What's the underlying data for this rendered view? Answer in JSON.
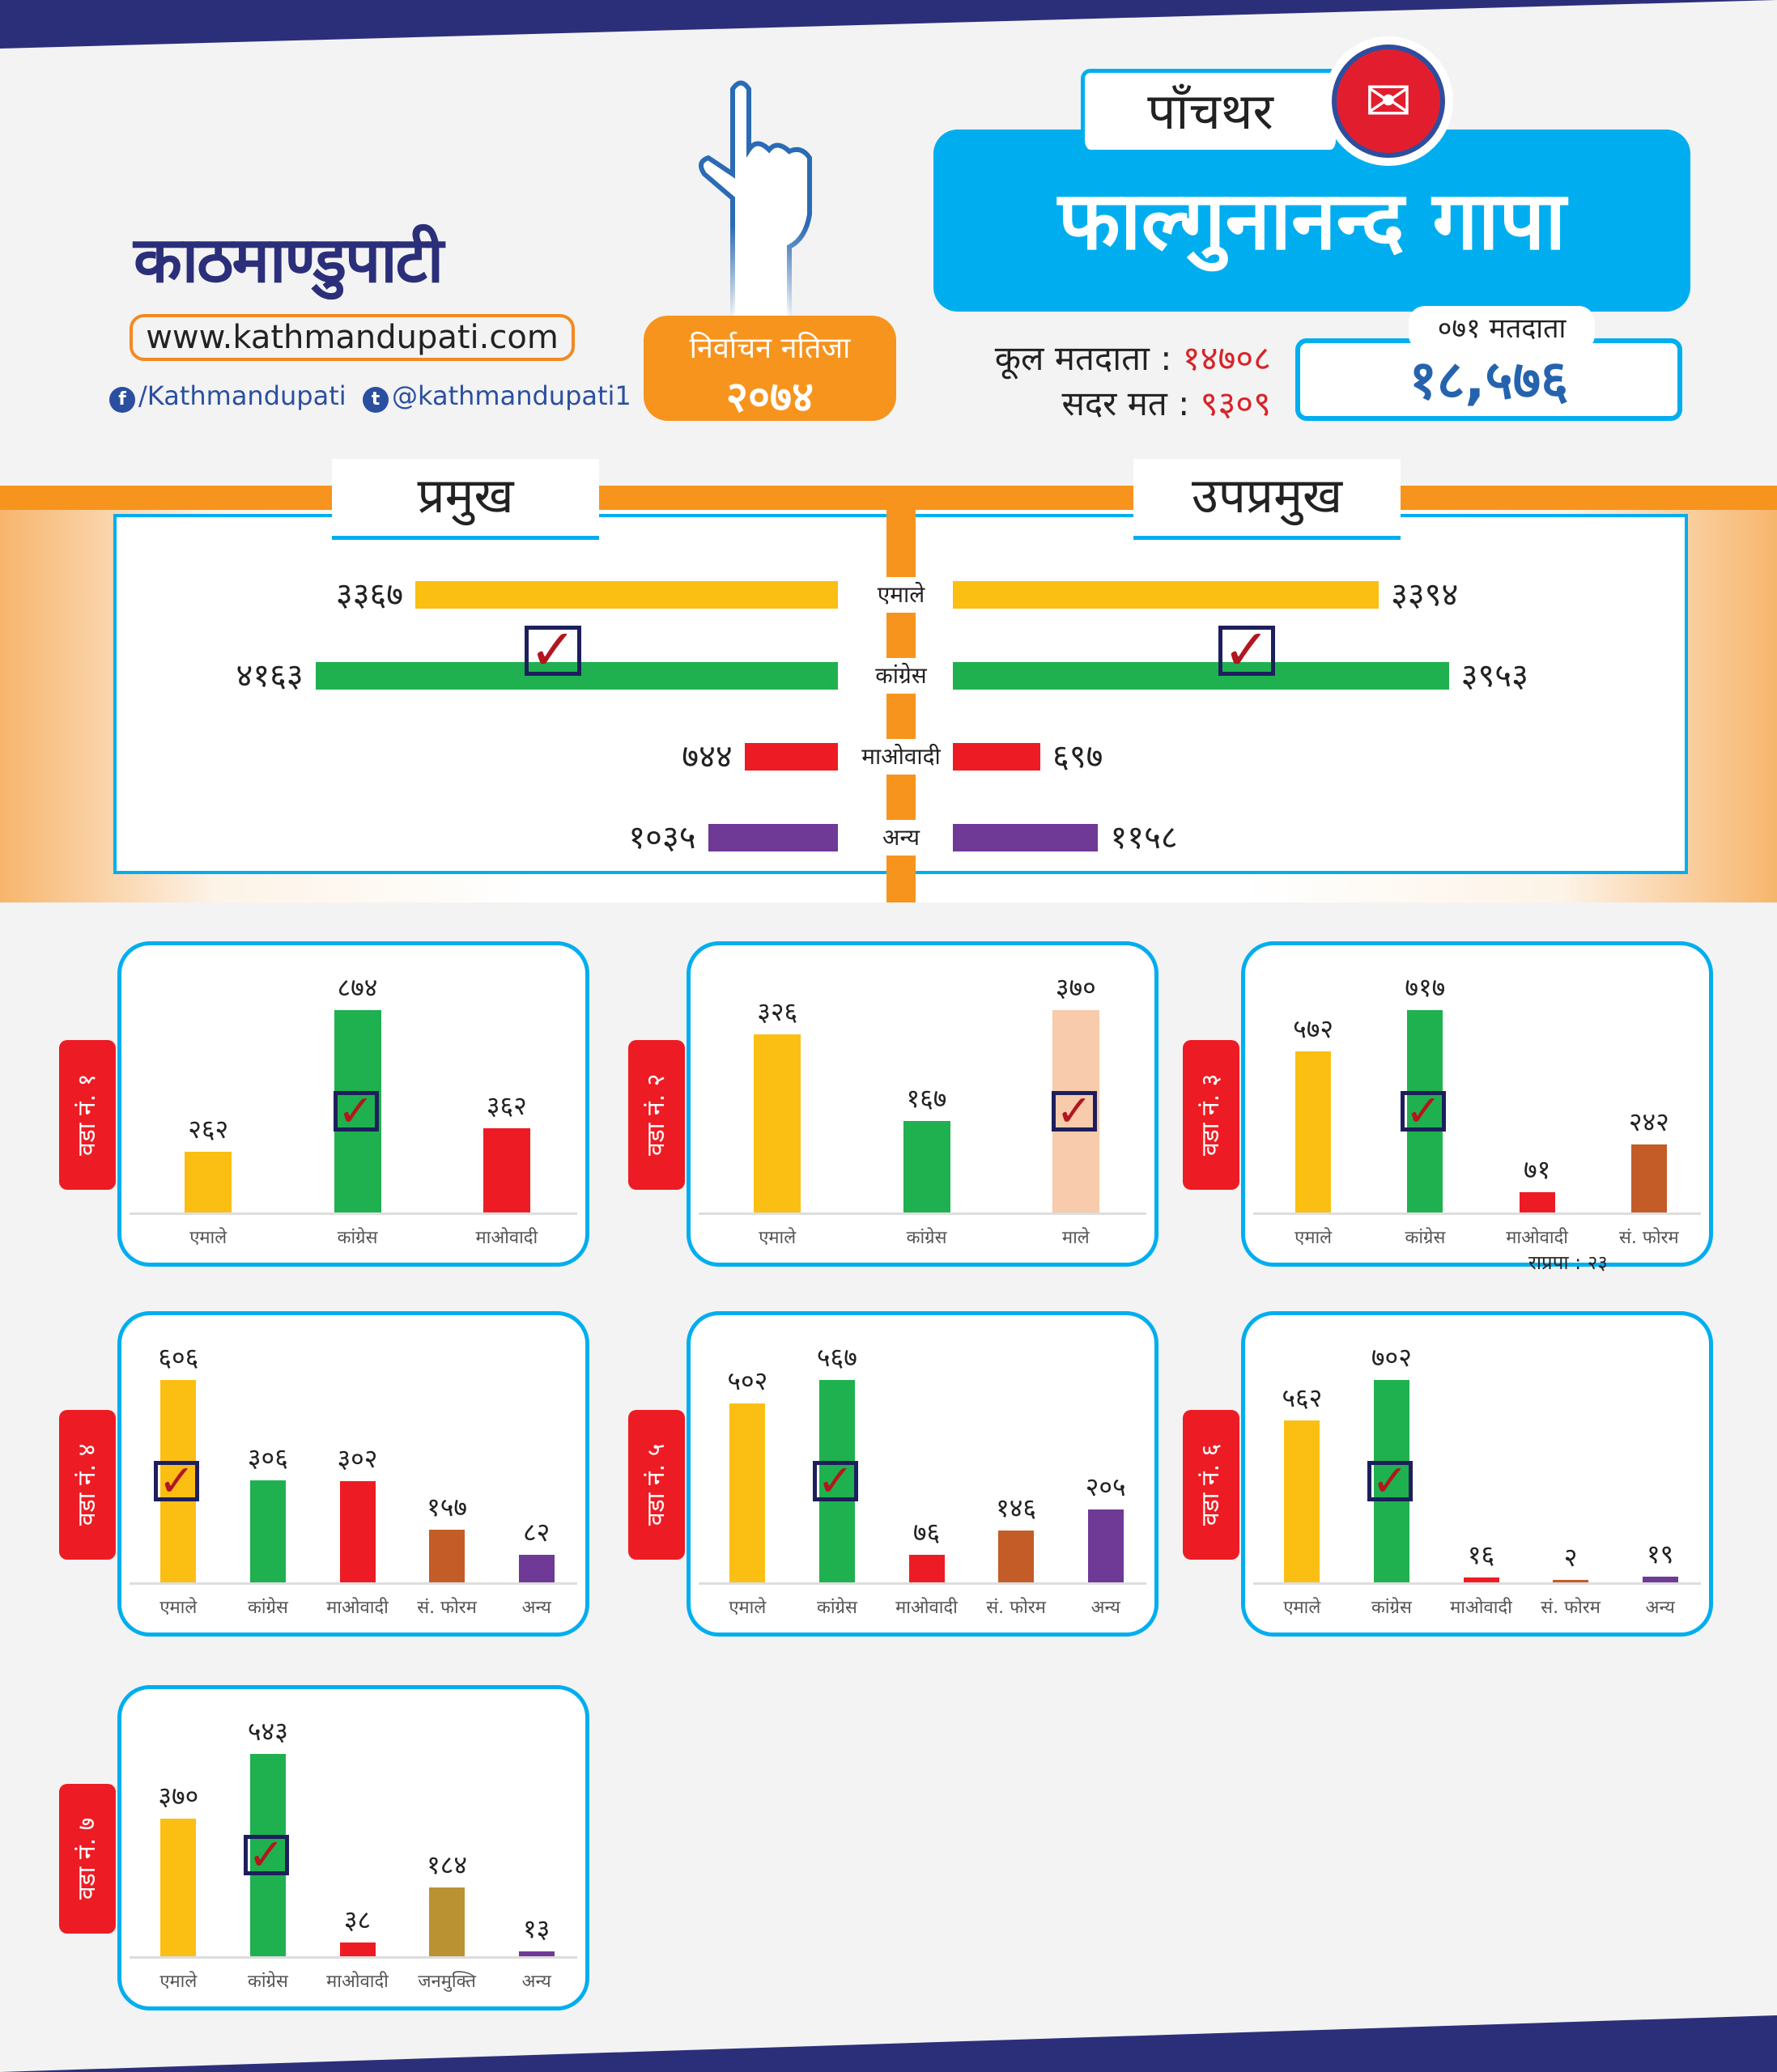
{
  "header": {
    "logo_text": "काठमाण्डुपाटी",
    "url": "www.kathmandupati.com",
    "facebook": "/Kathmandupati",
    "twitter": "@kathmandupati1",
    "badge_line1": "निर्वाचन नतिजा",
    "badge_line2": "२०७४"
  },
  "district": "पाँचथर",
  "municipality": "फाल्गुनानन्द गापा",
  "stats": {
    "total_voters_label": "कूल मतदाता :",
    "total_voters": "१४७०८",
    "valid_votes_label": "सदर मत :",
    "valid_votes": "९३०९",
    "prev_label": "०७१ मतदाता",
    "prev_value": "१८,५७६"
  },
  "colors": {
    "uml": "#fbbf13",
    "congress": "#1fb14f",
    "maoist": "#ed1c24",
    "other": "#6f3996",
    "forum": "#c45c28",
    "male": "#f7cbab",
    "janamukti": "#bb9232"
  },
  "summary": {
    "chief_label": "प्रमुख",
    "deputy_label": "उपप्रमुख",
    "parties": [
      {
        "name": "एमाले",
        "chief": 3367,
        "chief_text": "३३६७",
        "deputy": 3394,
        "deputy_text": "३३९४",
        "color": "#fbbf13"
      },
      {
        "name": "कांग्रेस",
        "chief": 4163,
        "chief_text": "४१६३",
        "deputy": 3953,
        "deputy_text": "३९५३",
        "color": "#1fb14f",
        "winner": true
      },
      {
        "name": "माओवादी",
        "chief": 744,
        "chief_text": "७४४",
        "deputy": 697,
        "deputy_text": "६९७",
        "color": "#ed1c24"
      },
      {
        "name": "अन्य",
        "chief": 1035,
        "chief_text": "१०३५",
        "deputy": 1158,
        "deputy_text": "११५८",
        "color": "#6f3996"
      }
    ]
  },
  "chart_data": [
    {
      "type": "bar",
      "title": "वडा नं. १",
      "categories": [
        "एमाले",
        "कांग्रेस",
        "माओवादी"
      ],
      "values": [
        262,
        874,
        362
      ],
      "labels": [
        "२६२",
        "८७४",
        "३६२"
      ],
      "colors": [
        "#fbbf13",
        "#1fb14f",
        "#ed1c24"
      ],
      "winner": 1
    },
    {
      "type": "bar",
      "title": "वडा नं. २",
      "categories": [
        "एमाले",
        "कांग्रेस",
        "माले"
      ],
      "values": [
        326,
        167,
        370
      ],
      "labels": [
        "३२६",
        "१६७",
        "३७०"
      ],
      "colors": [
        "#fbbf13",
        "#1fb14f",
        "#f7cbab"
      ],
      "winner": 2
    },
    {
      "type": "bar",
      "title": "वडा नं. ३",
      "categories": [
        "एमाले",
        "कांग्रेस",
        "माओवादी",
        "सं. फोरम"
      ],
      "values": [
        572,
        717,
        71,
        242
      ],
      "labels": [
        "५७२",
        "७१७",
        "७१",
        "२४२"
      ],
      "colors": [
        "#fbbf13",
        "#1fb14f",
        "#ed1c24",
        "#c45c28"
      ],
      "winner": 1,
      "note": "राप्रपा : २३"
    },
    {
      "type": "bar",
      "title": "वडा नं. ४",
      "categories": [
        "एमाले",
        "कांग्रेस",
        "माओवादी",
        "सं. फोरम",
        "अन्य"
      ],
      "values": [
        606,
        306,
        302,
        157,
        82
      ],
      "labels": [
        "६०६",
        "३०६",
        "३०२",
        "१५७",
        "८२"
      ],
      "colors": [
        "#fbbf13",
        "#1fb14f",
        "#ed1c24",
        "#c45c28",
        "#6f3996"
      ],
      "winner": 0
    },
    {
      "type": "bar",
      "title": "वडा नं. ५",
      "categories": [
        "एमाले",
        "कांग्रेस",
        "माओवादी",
        "सं. फोरम",
        "अन्य"
      ],
      "values": [
        502,
        567,
        76,
        146,
        205
      ],
      "labels": [
        "५०२",
        "५६७",
        "७६",
        "१४६",
        "२०५"
      ],
      "colors": [
        "#fbbf13",
        "#1fb14f",
        "#ed1c24",
        "#c45c28",
        "#6f3996"
      ],
      "winner": 1
    },
    {
      "type": "bar",
      "title": "वडा नं. ६",
      "categories": [
        "एमाले",
        "कांग्रेस",
        "माओवादी",
        "सं. फोरम",
        "अन्य"
      ],
      "values": [
        562,
        702,
        16,
        2,
        19
      ],
      "labels": [
        "५६२",
        "७०२",
        "१६",
        "२",
        "१९"
      ],
      "colors": [
        "#fbbf13",
        "#1fb14f",
        "#ed1c24",
        "#c45c28",
        "#6f3996"
      ],
      "winner": 1
    },
    {
      "type": "bar",
      "title": "वडा नं. ७",
      "categories": [
        "एमाले",
        "कांग्रेस",
        "माओवादी",
        "जनमुक्ति",
        "अन्य"
      ],
      "values": [
        370,
        543,
        38,
        184,
        13
      ],
      "labels": [
        "३७०",
        "५४३",
        "३८",
        "१८४",
        "१३"
      ],
      "colors": [
        "#fbbf13",
        "#1fb14f",
        "#ed1c24",
        "#bb9232",
        "#6f3996"
      ],
      "winner": 1
    }
  ]
}
